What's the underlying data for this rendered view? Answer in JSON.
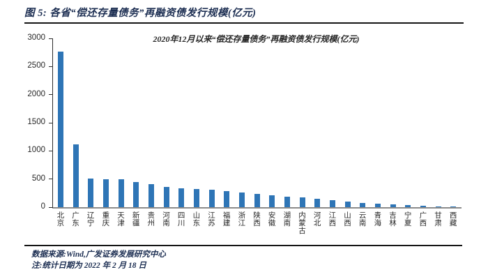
{
  "figure": {
    "header_title": "图 5: 各省“偿还存量债务”再融资债发行规模(亿元)",
    "source_line": "数据来源:Wind,广发证券发展研究中心",
    "note_line": "注:统计日期为 2022 年 2 月 18 日"
  },
  "chart_data": {
    "type": "bar",
    "title": "2020年12月以来“偿还存量债务”再融资债发行规模(亿元)",
    "categories": [
      "北京",
      "广东",
      "辽宁",
      "重庆",
      "天津",
      "新疆",
      "贵州",
      "河南",
      "四川",
      "山东",
      "江苏",
      "福建",
      "浙江",
      "陕西",
      "安徽",
      "湖南",
      "内蒙古",
      "河北",
      "江西",
      "山西",
      "云南",
      "青海",
      "吉林",
      "宁夏",
      "广西",
      "甘肃",
      "西藏"
    ],
    "values": [
      2770,
      1110,
      505,
      500,
      490,
      450,
      405,
      355,
      335,
      320,
      315,
      290,
      260,
      230,
      205,
      185,
      175,
      155,
      130,
      105,
      75,
      65,
      50,
      35,
      20,
      12,
      8
    ],
    "xlabel": "",
    "ylabel": "",
    "ylim": [
      0,
      3000
    ],
    "yticks": [
      0,
      500,
      1000,
      1500,
      2000,
      2500,
      3000
    ],
    "grid": false,
    "legend": "none",
    "bar_color": "#2e75b6"
  },
  "colors": {
    "bar": "#2e75b6",
    "heading_text": "#1c2e52",
    "axis_text": "#262626",
    "rule": "#141414",
    "baseline": "#8a8a8a"
  }
}
